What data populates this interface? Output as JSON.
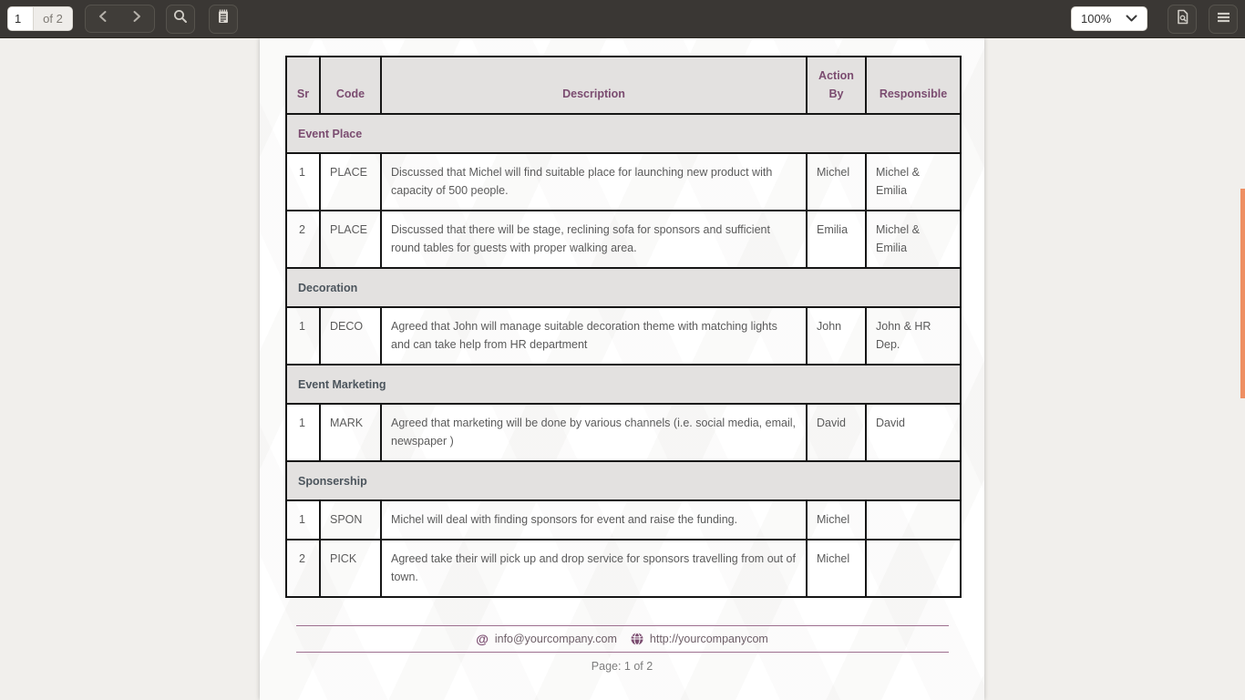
{
  "toolbar": {
    "page_input": "1",
    "pages_label": "of 2",
    "zoom_value": "100%"
  },
  "document": {
    "table": {
      "headers": [
        "Sr",
        "Code",
        "Description",
        "Action By",
        "Responsible"
      ],
      "sections": [
        {
          "title": "Event Place",
          "title_color": "#7b4c70",
          "rows": [
            {
              "sr": "1",
              "code": "PLACE",
              "description": "Discussed that Michel will find suitable place for launching new product with capacity of 500 people.",
              "action_by": "Michel",
              "responsible": "Michel & Emilia"
            },
            {
              "sr": "2",
              "code": "PLACE",
              "description": "Discussed that there will be stage, reclining sofa for sponsors and sufficient round tables for guests with proper walking area.",
              "action_by": "Emilia",
              "responsible": "Michel & Emilia"
            }
          ]
        },
        {
          "title": "Decoration",
          "title_color": "#4c555d",
          "rows": [
            {
              "sr": "1",
              "code": "DECO",
              "description": "Agreed that John will manage suitable decoration theme with matching lights and can take help from HR department",
              "action_by": "John",
              "responsible": "John & HR Dep."
            }
          ]
        },
        {
          "title": "Event Marketing",
          "title_color": "#4c555d",
          "rows": [
            {
              "sr": "1",
              "code": "MARK",
              "description": "Agreed that marketing will be done by various channels (i.e. social media, email, newspaper )",
              "action_by": "David",
              "responsible": "David"
            }
          ]
        },
        {
          "title": "Sponsership",
          "title_color": "#4c555d",
          "rows": [
            {
              "sr": "1",
              "code": "SPON",
              "description": "Michel will deal with finding sponsors for event and raise the funding.",
              "action_by": "Michel",
              "responsible": ""
            },
            {
              "sr": "2",
              "code": "PICK",
              "description": "Agreed take their will pick up and drop service for sponsors travelling from out of town.",
              "action_by": "Michel",
              "responsible": ""
            }
          ]
        }
      ]
    },
    "footer": {
      "email": "info@yourcompany.com",
      "website": "http://yourcompanycom",
      "at_symbol": "@",
      "page_label": "Page: 1 of 2"
    }
  },
  "colors": {
    "accent_purple": "#7b4c70",
    "section_gray": "#4c555d",
    "footer_line_purple": "#9d6f8f",
    "scrollbar_orange": "#ee8f63",
    "toolbar_bg": "#3a3734",
    "table_header_bg": "#e3e1e0"
  }
}
